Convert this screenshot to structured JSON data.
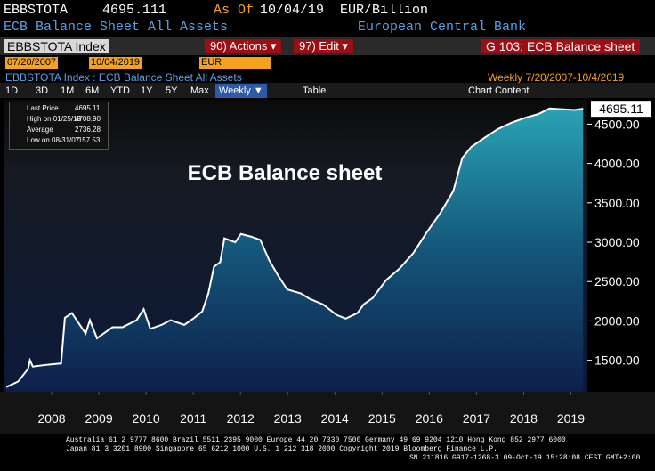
{
  "terminal": {
    "ticker": "EBBSTOTA",
    "price": "4695.111",
    "as_of_label": "As Of",
    "as_of_date": "10/04/19",
    "units": "EUR/Billion",
    "description": "ECB Balance Sheet All Assets",
    "source": "European Central Bank",
    "security": "EBBSTOTA Index",
    "actions": "90) Actions ▾",
    "edit": "97) Edit ▾",
    "page_title": "G 103: ECB Balance sheet",
    "start_date": "07/20/2007",
    "end_date": "10/04/2019",
    "currency": "EUR",
    "chart_header": "EBBSTOTA Index : ECB Balance Sheet All Assets",
    "frequency_range": "Weekly  7/20/2007-10/4/2019",
    "periods": [
      "1D",
      "3D",
      "1M",
      "6M",
      "YTD",
      "1Y",
      "5Y",
      "Max"
    ],
    "frequency": "Weekly ▼",
    "table": "Table",
    "chart_content": "Chart Content",
    "footer": [
      "Australia 61 2 9777 8600 Brazil 5511 2395 9000 Europe 44 20 7330 7500 Germany 49 69 9204 1210 Hong Kong 852 2977 6000",
      "Japan 81 3 3201 8900        Singapore 65 6212 1000        U.S. 1 212 318 2000              Copyright 2019 Bloomberg Finance L.P.",
      "SN 211816 G917-1268-3 09-Oct-19 15:28:08 CEST GMT+2:00"
    ]
  },
  "chart_data": {
    "type": "area",
    "title": "ECB Balance sheet",
    "legend_stats": [
      {
        "label": "Last Price",
        "value": "4695.11"
      },
      {
        "label": "High on 01/25/19",
        "value": "4708.90"
      },
      {
        "label": "Average",
        "value": "2736.28"
      },
      {
        "label": "Low on 08/31/07",
        "value": "1157.53"
      }
    ],
    "last_label": "4695.11",
    "x": [
      2007.54,
      2007.79,
      2008.0,
      2008.04,
      2008.1,
      2008.36,
      2008.7,
      2008.78,
      2008.93,
      2009.03,
      2009.22,
      2009.31,
      2009.46,
      2009.6,
      2009.79,
      2010.0,
      2010.3,
      2010.45,
      2010.59,
      2010.83,
      2011.02,
      2011.31,
      2011.5,
      2011.69,
      2011.82,
      2011.94,
      2012.07,
      2012.16,
      2012.39,
      2012.51,
      2012.73,
      2012.92,
      2013.11,
      2013.3,
      2013.49,
      2013.78,
      2013.97,
      2014.25,
      2014.54,
      2014.73,
      2014.98,
      2015.11,
      2015.3,
      2015.59,
      2015.87,
      2016.16,
      2016.44,
      2016.73,
      2017.01,
      2017.2,
      2017.39,
      2017.68,
      2017.96,
      2018.25,
      2018.53,
      2018.82,
      2019.05,
      2019.29,
      2019.58,
      2019.76
    ],
    "series": [
      {
        "name": "Last Price",
        "color": "#ffffff",
        "values": [
          1160,
          1230,
          1390,
          1500,
          1420,
          1440,
          1460,
          2040,
          2100,
          2010,
          1840,
          2010,
          1780,
          1840,
          1920,
          1920,
          2010,
          2150,
          1900,
          1950,
          2010,
          1950,
          2030,
          2120,
          2350,
          2690,
          2745,
          3050,
          3000,
          3105,
          3070,
          3030,
          2770,
          2575,
          2400,
          2350,
          2280,
          2210,
          2075,
          2030,
          2100,
          2210,
          2290,
          2520,
          2665,
          2860,
          3120,
          3365,
          3650,
          4070,
          4210,
          4330,
          4440,
          4520,
          4580,
          4630,
          4700,
          4690,
          4680,
          4695.111
        ]
      }
    ],
    "xlim": [
      2007.5,
      2019.85
    ],
    "xticks": [
      {
        "value": 2008.5,
        "label": "2008"
      },
      {
        "value": 2009.5,
        "label": "2009"
      },
      {
        "value": 2010.5,
        "label": "2010"
      },
      {
        "value": 2011.5,
        "label": "2011"
      },
      {
        "value": 2012.5,
        "label": "2012"
      },
      {
        "value": 2013.5,
        "label": "2013"
      },
      {
        "value": 2014.5,
        "label": "2014"
      },
      {
        "value": 2015.5,
        "label": "2015"
      },
      {
        "value": 2016.5,
        "label": "2016"
      },
      {
        "value": 2017.5,
        "label": "2017"
      },
      {
        "value": 2018.5,
        "label": "2018"
      },
      {
        "value": 2019.5,
        "label": "2019"
      }
    ],
    "ylim": [
      1100,
      4810
    ],
    "yticks": [
      {
        "value": 1500,
        "label": "1500.00"
      },
      {
        "value": 2000,
        "label": "2000.00"
      },
      {
        "value": 2500,
        "label": "2500.00"
      },
      {
        "value": 3000,
        "label": "3000.00"
      },
      {
        "value": 3500,
        "label": "3500.00"
      },
      {
        "value": 4000,
        "label": "4000.00"
      },
      {
        "value": 4500,
        "label": "4500.00"
      }
    ]
  }
}
